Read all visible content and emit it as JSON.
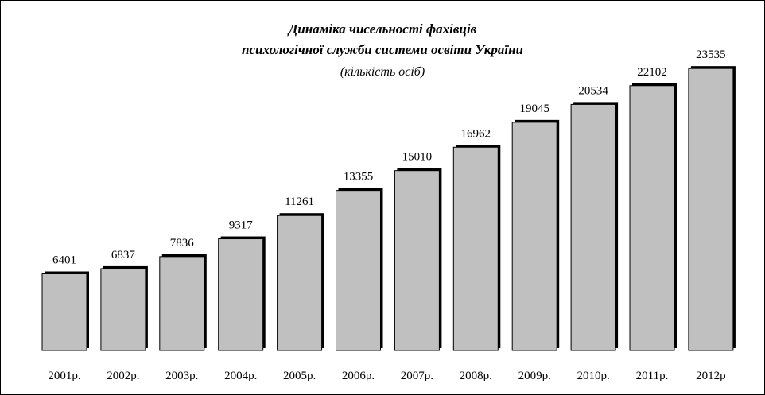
{
  "chart_data": {
    "type": "bar",
    "title": "Динаміка чисельності фахівців",
    "title_line2": "психологічної служби системи освіти України",
    "subtitle": "(кількість осіб)",
    "xlabel": "",
    "ylabel": "",
    "categories": [
      "2001р.",
      "2002р.",
      "2003р.",
      "2004р.",
      "2005р.",
      "2006р.",
      "2007р.",
      "2008р.",
      "2009р.",
      "2010р.",
      "2011р.",
      "2012р"
    ],
    "values": [
      6401,
      6837,
      7836,
      9317,
      11261,
      13355,
      15010,
      16962,
      19045,
      20534,
      22102,
      23535
    ],
    "data_labels": [
      "6401",
      "6837",
      "7836",
      "9317",
      "11261",
      "13355",
      "15010",
      "16962",
      "19045",
      "20534",
      "22102",
      "23535"
    ],
    "ylim": [
      0,
      26000
    ],
    "grid": false,
    "legend": "none",
    "bar_color": "#c0c0c0",
    "bar_border_color": "#000000",
    "shadow_color": "#000000"
  }
}
